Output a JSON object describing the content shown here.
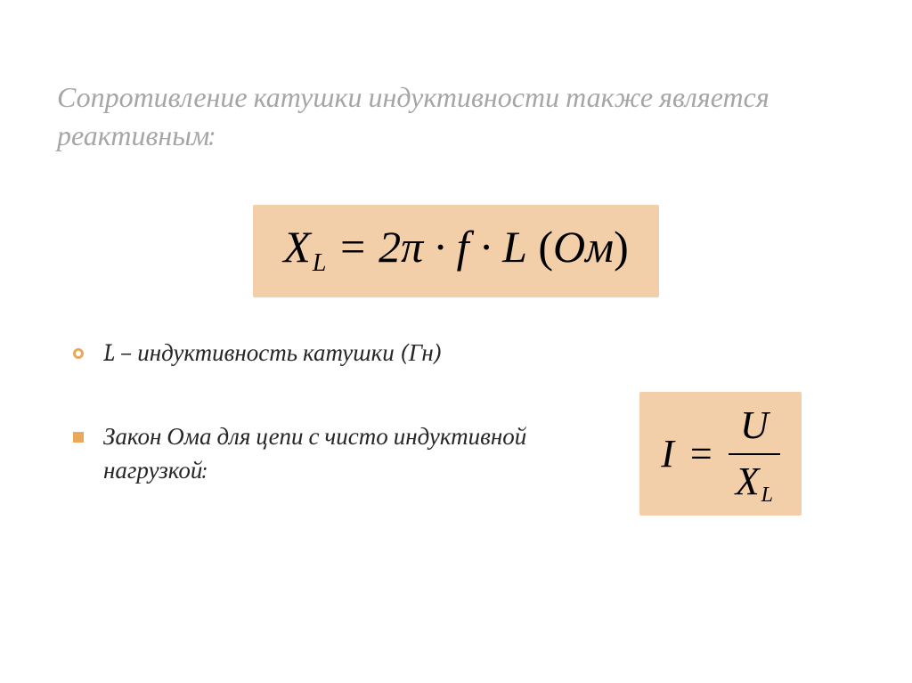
{
  "title": "Сопротивление катушки индуктивности также является реактивным:",
  "main_equation": {
    "lhs_var": "X",
    "lhs_sub": "L",
    "rhs": " = 2π · f · L",
    "unit_open": "   (",
    "unit": "Ом",
    "unit_close": ")",
    "background": "#f2cfa8"
  },
  "bullet1": {
    "marker_color": "#e8a95b",
    "symbol": "L",
    "text": " – индуктивность катушки ",
    "unit": "(Гн)"
  },
  "bullet2": {
    "marker_color": "#e8a95b",
    "text": "Закон Ома для цепи с чисто индуктивной нагрузкой:"
  },
  "ohm_equation": {
    "lhs": "I",
    "eq": "=",
    "num": "U",
    "den_var": "X",
    "den_sub": "L",
    "background": "#f2cfa8"
  },
  "colors": {
    "title_color": "#a6a6a6",
    "text_color": "#262626",
    "page_bg": "#ffffff"
  }
}
